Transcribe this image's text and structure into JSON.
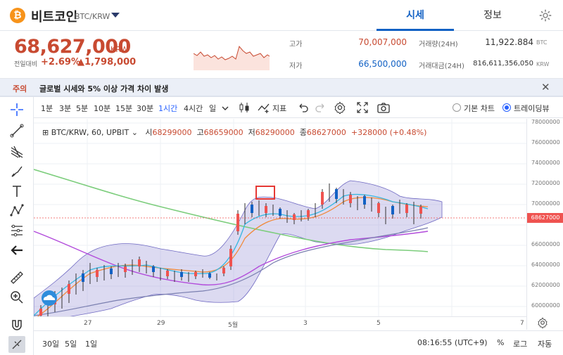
{
  "header": {
    "coin_logo": "₿",
    "coin_name": "비트코인",
    "pair": "BTC/KRW",
    "tabs": [
      {
        "label": "시세"
      },
      {
        "label": "정보"
      }
    ]
  },
  "summary": {
    "price": "68,627,000",
    "unit": "KRW",
    "change_label": "전일대비",
    "change_pct": "+2.69%",
    "change_abs": "▲1,798,000",
    "stats": {
      "high_label": "고가",
      "high_value": "70,007,000",
      "low_label": "저가",
      "low_value": "66,500,000",
      "volume_label": "거래량(24H)",
      "volume_value": "11,922.884",
      "volume_unit": "BTC",
      "amount_label": "거래대금(24H)",
      "amount_value": "816,611,356,050",
      "amount_unit": "KRW"
    }
  },
  "notice": {
    "tag": "주의",
    "text": "글로벌 시세와 5% 이상 가격 차이 발생"
  },
  "toolbar": {
    "timeframes": [
      {
        "label": "1분"
      },
      {
        "label": "3분"
      },
      {
        "label": "5분"
      },
      {
        "label": "10분"
      },
      {
        "label": "15분"
      },
      {
        "label": "30분"
      },
      {
        "label": "1시간"
      },
      {
        "label": "4시간"
      },
      {
        "label": "일"
      }
    ],
    "indicator_label": "지표",
    "basic_chart_label": "기본 차트",
    "tradingview_label": "트레이딩뷰"
  },
  "legend": {
    "symbol": "BTC/KRW, 60, UPBIT",
    "open_label": "시",
    "open": "68299000",
    "high_label": "고",
    "high": "68659000",
    "low_label": "저",
    "low": "68290000",
    "close_label": "종",
    "close": "68627000",
    "change": "+328000 (+0.48%)"
  },
  "y_axis": {
    "ticks": [
      "78000000",
      "76000000",
      "74000000",
      "72000000",
      "70000000",
      "68000000",
      "66000000",
      "64000000",
      "62000000",
      "60000000"
    ],
    "last_price": "68627000"
  },
  "x_axis": {
    "ticks": [
      "27",
      "29",
      "5월",
      "3",
      "5",
      "7"
    ]
  },
  "bottom_bar": {
    "ranges": [
      {
        "label": "30일"
      },
      {
        "label": "5일"
      },
      {
        "label": "1일"
      }
    ],
    "time": "08:16:55 (UTC+9)",
    "pct": "%",
    "log": "로그",
    "auto": "자동"
  },
  "colors": {
    "up": "#c84a31",
    "down": "#1261c4",
    "accent": "#2962ff"
  },
  "chart_data": {
    "type": "line",
    "y_unit": "KRW",
    "ylim": [
      59500000,
      79000000
    ],
    "x": [
      "27",
      "29",
      "5월",
      "3",
      "5",
      "7"
    ],
    "price_points": [
      62.0,
      62.6,
      63.4,
      64.8,
      65.2,
      64.6,
      64.0,
      63.9,
      64.5,
      66.8,
      68.8,
      68.7,
      68.5,
      69.4,
      69.2,
      68.4,
      68.8,
      68.6
    ],
    "grid": true,
    "legend_position": "top-left"
  }
}
